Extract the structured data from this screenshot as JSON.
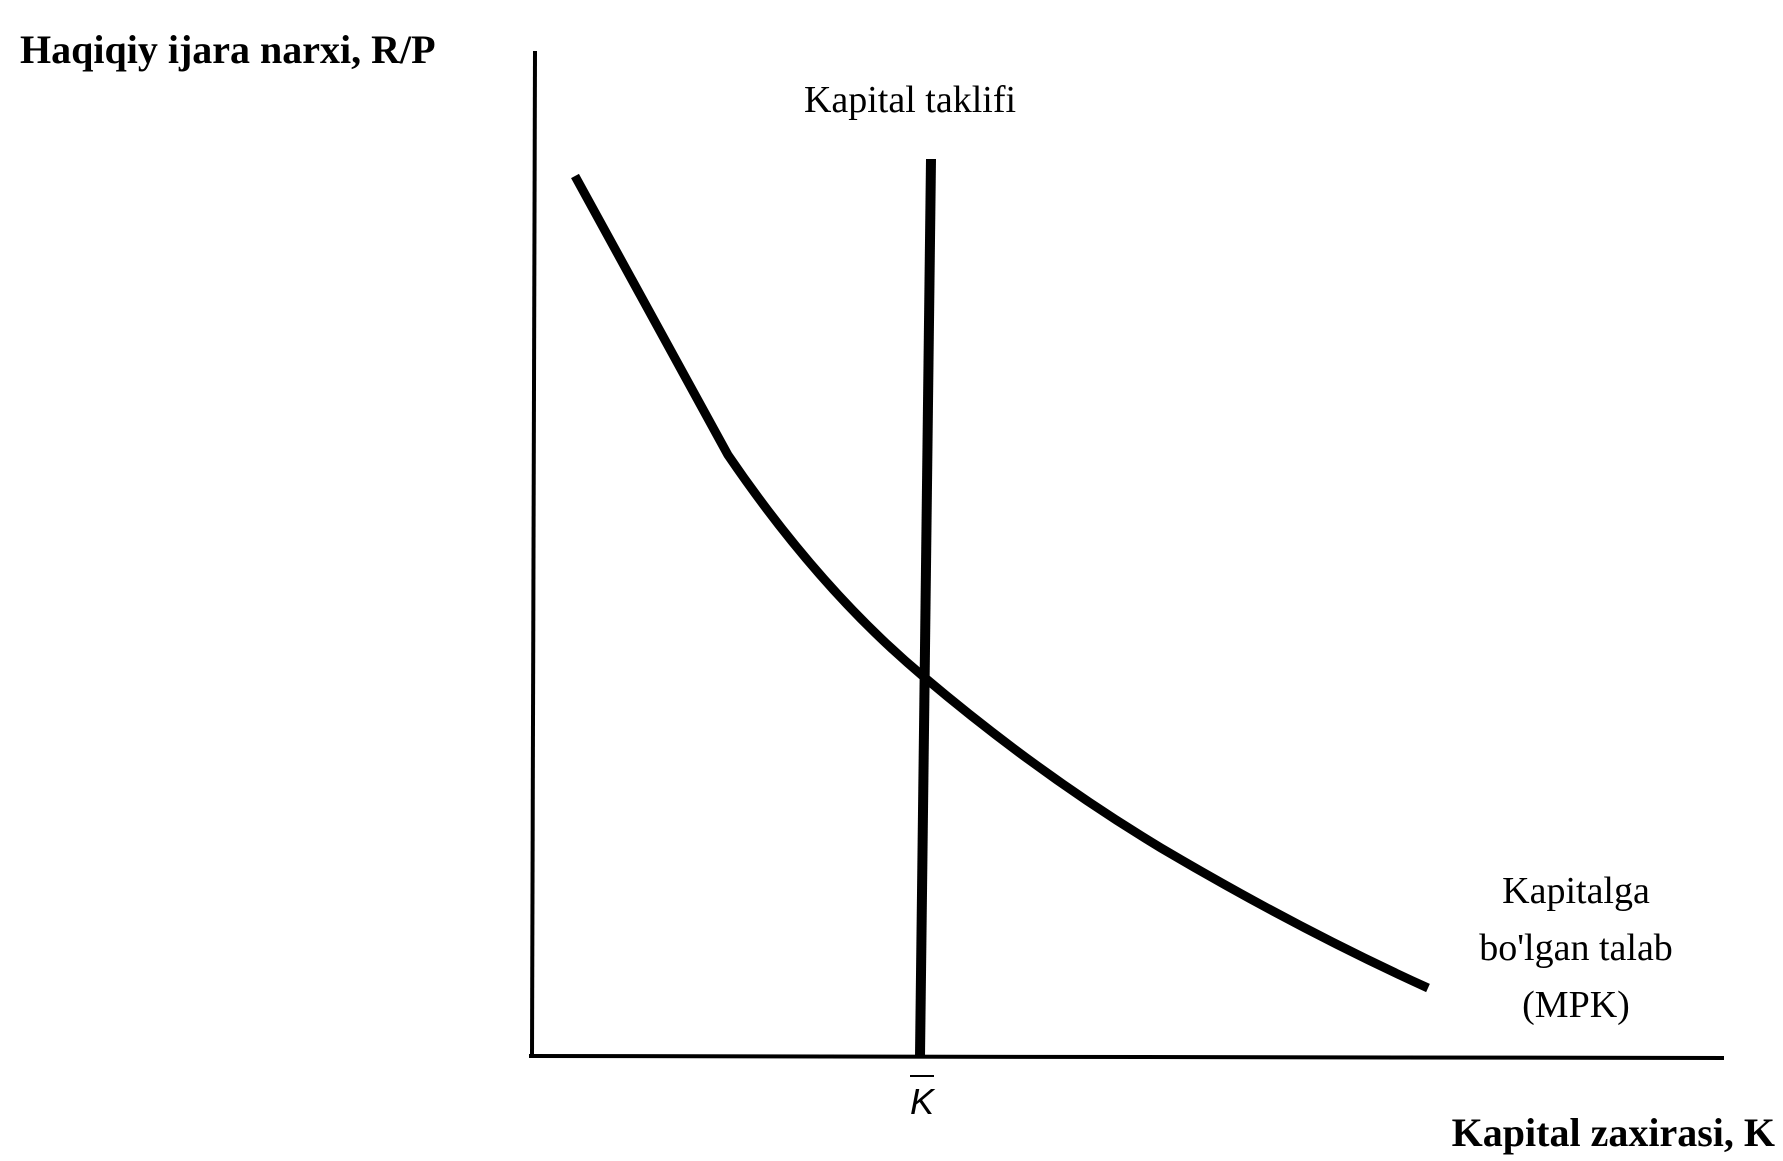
{
  "axes": {
    "y_label": "Haqiqiy ijara narxi, R/P",
    "x_label": "Kapital zaxirasi, K",
    "x_mark": "K"
  },
  "curves": {
    "supply_label": "Kapital taklifi",
    "demand_label": [
      "Kapitalga",
      "bo'lgan talab",
      "(MPK)"
    ]
  }
}
